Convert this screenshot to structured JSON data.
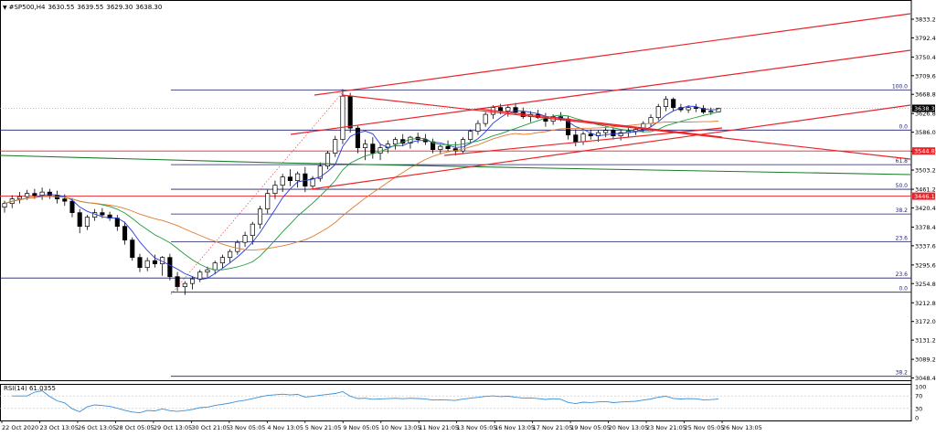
{
  "header": {
    "symbol": "#SP500,H4",
    "ohlc": [
      "3630.55",
      "3639.55",
      "3629.30",
      "3638.30"
    ]
  },
  "rsi": {
    "title": "RSI(14) 61.0355",
    "levels": [
      "100",
      "70",
      "30",
      "0"
    ]
  },
  "chart_data": {
    "type": "candlestick",
    "price_axis": {
      "ticks": [
        "3833.20",
        "3792.40",
        "3750.40",
        "3709.60",
        "3668.80",
        "3626.80",
        "3586.00",
        "3544.00",
        "3503.20",
        "3461.20",
        "3420.40",
        "3378.40",
        "3337.60",
        "3295.60",
        "3254.80",
        "3212.80",
        "3172.00",
        "3131.20",
        "3089.20",
        "3048.40"
      ],
      "range": [
        3048.4,
        3833.2
      ]
    },
    "time_axis": {
      "labels": [
        "22 Oct 2020",
        "23 Oct 13:05",
        "26 Oct 13:05",
        "28 Oct 05:05",
        "29 Oct 13:05",
        "30 Oct 21:05",
        "3 Nov 05:05",
        "4 Nov 13:05",
        "5 Nov 21:05",
        "9 Nov 05:05",
        "10 Nov 13:05",
        "11 Nov 21:05",
        "13 Nov 05:05",
        "16 Nov 13:05",
        "17 Nov 21:05",
        "19 Nov 05:05",
        "20 Nov 13:05",
        "23 Nov 21:05",
        "25 Nov 05:05",
        "26 Nov 13:05"
      ]
    },
    "price_tags": [
      {
        "value": 3638.3,
        "label": "3638.30",
        "color": "#000000"
      },
      {
        "value": 3544.89,
        "label": "3544.89",
        "color": "#e8242a"
      },
      {
        "value": 3446.12,
        "label": "3446.12",
        "color": "#e8242a"
      }
    ],
    "fibonacci_levels": [
      {
        "label": "100.0",
        "value": 3678.0
      },
      {
        "label": "0.0",
        "value": 3590.6
      },
      {
        "label": "61.8",
        "value": 3515.0
      },
      {
        "label": "50.0",
        "value": 3461.2
      },
      {
        "label": "38.2",
        "value": 3407.0
      },
      {
        "label": "23.6",
        "value": 3346.0
      },
      {
        "label": "23.6",
        "value": 3267.0
      },
      {
        "label": "0.0",
        "value": 3236.0
      },
      {
        "label": "38.2",
        "value": 3052.0
      }
    ],
    "candles": [
      [
        3422,
        3436,
        3410,
        3430
      ],
      [
        3430,
        3448,
        3420,
        3440
      ],
      [
        3440,
        3455,
        3430,
        3445
      ],
      [
        3445,
        3460,
        3438,
        3452
      ],
      [
        3452,
        3462,
        3440,
        3448
      ],
      [
        3448,
        3465,
        3438,
        3455
      ],
      [
        3455,
        3462,
        3440,
        3448
      ],
      [
        3448,
        3458,
        3430,
        3440
      ],
      [
        3440,
        3450,
        3425,
        3435
      ],
      [
        3435,
        3442,
        3400,
        3410
      ],
      [
        3410,
        3418,
        3365,
        3380
      ],
      [
        3380,
        3405,
        3372,
        3400
      ],
      [
        3400,
        3418,
        3392,
        3410
      ],
      [
        3410,
        3420,
        3398,
        3405
      ],
      [
        3405,
        3412,
        3392,
        3398
      ],
      [
        3398,
        3405,
        3370,
        3380
      ],
      [
        3380,
        3390,
        3340,
        3350
      ],
      [
        3350,
        3356,
        3305,
        3312
      ],
      [
        3312,
        3320,
        3280,
        3290
      ],
      [
        3290,
        3312,
        3282,
        3305
      ],
      [
        3305,
        3318,
        3290,
        3298
      ],
      [
        3298,
        3315,
        3272,
        3312
      ],
      [
        3312,
        3320,
        3262,
        3270
      ],
      [
        3270,
        3280,
        3238,
        3248
      ],
      [
        3248,
        3260,
        3230,
        3255
      ],
      [
        3255,
        3270,
        3242,
        3265
      ],
      [
        3265,
        3285,
        3258,
        3280
      ],
      [
        3280,
        3292,
        3268,
        3285
      ],
      [
        3285,
        3305,
        3275,
        3300
      ],
      [
        3300,
        3318,
        3288,
        3312
      ],
      [
        3312,
        3330,
        3300,
        3325
      ],
      [
        3325,
        3350,
        3318,
        3345
      ],
      [
        3345,
        3368,
        3335,
        3360
      ],
      [
        3360,
        3390,
        3340,
        3385
      ],
      [
        3385,
        3425,
        3375,
        3418
      ],
      [
        3418,
        3460,
        3408,
        3452
      ],
      [
        3452,
        3480,
        3440,
        3470
      ],
      [
        3470,
        3495,
        3455,
        3488
      ],
      [
        3488,
        3505,
        3468,
        3480
      ],
      [
        3480,
        3500,
        3465,
        3495
      ],
      [
        3495,
        3510,
        3455,
        3468
      ],
      [
        3468,
        3490,
        3460,
        3485
      ],
      [
        3485,
        3520,
        3478,
        3512
      ],
      [
        3512,
        3545,
        3505,
        3540
      ],
      [
        3540,
        3578,
        3532,
        3570
      ],
      [
        3570,
        3680,
        3560,
        3665
      ],
      [
        3665,
        3672,
        3585,
        3595
      ],
      [
        3595,
        3600,
        3540,
        3552
      ],
      [
        3552,
        3570,
        3525,
        3560
      ],
      [
        3560,
        3575,
        3528,
        3540
      ],
      [
        3540,
        3560,
        3525,
        3552
      ],
      [
        3552,
        3568,
        3540,
        3560
      ],
      [
        3560,
        3575,
        3548,
        3570
      ],
      [
        3570,
        3582,
        3555,
        3562
      ],
      [
        3562,
        3578,
        3550,
        3575
      ],
      [
        3575,
        3585,
        3562,
        3570
      ],
      [
        3570,
        3582,
        3558,
        3565
      ],
      [
        3565,
        3572,
        3540,
        3548
      ],
      [
        3548,
        3560,
        3538,
        3555
      ],
      [
        3555,
        3568,
        3545,
        3550
      ],
      [
        3550,
        3565,
        3535,
        3545
      ],
      [
        3545,
        3575,
        3540,
        3570
      ],
      [
        3570,
        3592,
        3562,
        3588
      ],
      [
        3588,
        3612,
        3580,
        3605
      ],
      [
        3605,
        3630,
        3598,
        3625
      ],
      [
        3625,
        3645,
        3615,
        3640
      ],
      [
        3640,
        3648,
        3625,
        3632
      ],
      [
        3632,
        3645,
        3620,
        3640
      ],
      [
        3640,
        3650,
        3625,
        3630
      ],
      [
        3630,
        3640,
        3615,
        3620
      ],
      [
        3620,
        3632,
        3608,
        3625
      ],
      [
        3625,
        3635,
        3615,
        3618
      ],
      [
        3618,
        3628,
        3598,
        3610
      ],
      [
        3610,
        3625,
        3602,
        3620
      ],
      [
        3620,
        3630,
        3610,
        3615
      ],
      [
        3615,
        3622,
        3570,
        3580
      ],
      [
        3580,
        3592,
        3555,
        3565
      ],
      [
        3565,
        3588,
        3558,
        3582
      ],
      [
        3582,
        3592,
        3570,
        3578
      ],
      [
        3578,
        3590,
        3565,
        3585
      ],
      [
        3585,
        3598,
        3575,
        3590
      ],
      [
        3590,
        3596,
        3570,
        3578
      ],
      [
        3578,
        3590,
        3568,
        3585
      ],
      [
        3585,
        3595,
        3575,
        3588
      ],
      [
        3588,
        3598,
        3580,
        3592
      ],
      [
        3592,
        3610,
        3585,
        3605
      ],
      [
        3605,
        3625,
        3598,
        3618
      ],
      [
        3618,
        3648,
        3612,
        3642
      ],
      [
        3642,
        3665,
        3632,
        3658
      ],
      [
        3658,
        3662,
        3632,
        3640
      ],
      [
        3640,
        3648,
        3630,
        3635
      ],
      [
        3635,
        3645,
        3628,
        3640
      ],
      [
        3640,
        3648,
        3630,
        3638
      ],
      [
        3638,
        3645,
        3626,
        3630
      ],
      [
        3630,
        3640,
        3624,
        3632
      ],
      [
        3630.55,
        3639.55,
        3629.3,
        3638.3
      ]
    ]
  }
}
